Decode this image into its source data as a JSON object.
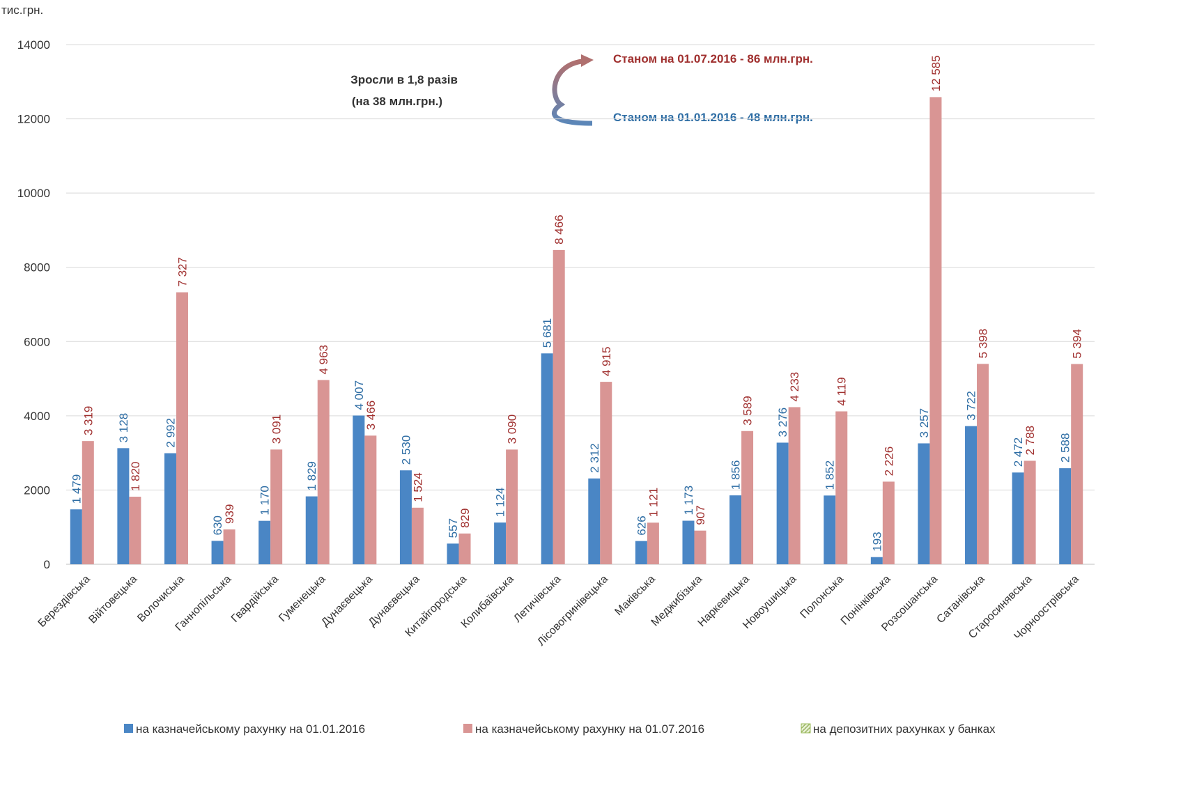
{
  "chart_data": {
    "type": "bar",
    "y_axis_label": "тис.грн.",
    "annotations": [
      "Зросли в 1,8 разів",
      "(на 38 млн.грн.)",
      "Станом на 01.07.2016 - 86 млн.грн.",
      "Станом на 01.01.2016 - 48 млн.грн."
    ],
    "categories": [
      "Берездівська",
      "Війтовецька",
      "Волочиська",
      "Ганнопільська",
      "Гвардійська",
      "Гуменецька",
      "Дунаєвецька",
      "Дунаєвецька",
      "Китайгородська",
      "Колибаївська",
      "Летичівська",
      "Лісовогринівецька",
      "Маківська",
      "Меджибізька",
      "Наркевицька",
      "Новоушицька",
      "Полонська",
      "Понінківська",
      "Розсошанська",
      "Сатанівська",
      "Старосинявська",
      "Чорноострівська"
    ],
    "series": [
      {
        "name": "на казначейському рахунку на 01.01.2016",
        "color": "#4a86c5",
        "label_color": "#2e6da4",
        "values": [
          1479,
          3128,
          2992,
          630,
          1170,
          1829,
          4007,
          2530,
          557,
          1124,
          5681,
          2312,
          626,
          1173,
          1856,
          3276,
          1852,
          193,
          3257,
          3722,
          2472,
          2588
        ],
        "value_labels": [
          "1 479",
          "3 128",
          "2 992",
          "630",
          "1 170",
          "1 829",
          "4 007",
          "2 530",
          "557",
          "1 124",
          "5 681",
          "2 312",
          "626",
          "1 173",
          "1 856",
          "3 276",
          "1 852",
          "193",
          "3 257",
          "3 722",
          "2 472",
          "2 588"
        ]
      },
      {
        "name": "на казначейському рахунку на 01.07.2016",
        "color": "#d99594",
        "label_color": "#a0302f",
        "values": [
          3319,
          1820,
          7327,
          939,
          3091,
          4963,
          3466,
          1524,
          829,
          3090,
          8466,
          4915,
          1121,
          907,
          3589,
          4233,
          4119,
          2226,
          12585,
          5398,
          2788,
          5394
        ],
        "value_labels": [
          "3 319",
          "1 820",
          "7 327",
          "939",
          "3 091",
          "4 963",
          "3 466",
          "1 524",
          "829",
          "3 090",
          "8 466",
          "4 915",
          "1 121",
          "907",
          "3 589",
          "4 233",
          "4 119",
          "2 226",
          "12 585",
          "5 398",
          "2 788",
          "5 394"
        ]
      },
      {
        "name": "на депозитних рахунках у банках",
        "color": "#9bbb59",
        "pattern": "hatch",
        "values": [
          null,
          null,
          null,
          null,
          null,
          null,
          null,
          null,
          null,
          null,
          null,
          null,
          null,
          null,
          null,
          null,
          null,
          null,
          null,
          null,
          null,
          null
        ]
      }
    ],
    "ylim": [
      0,
      14000
    ],
    "yticks": [
      0,
      2000,
      4000,
      6000,
      8000,
      10000,
      12000,
      14000
    ],
    "grid": true
  }
}
